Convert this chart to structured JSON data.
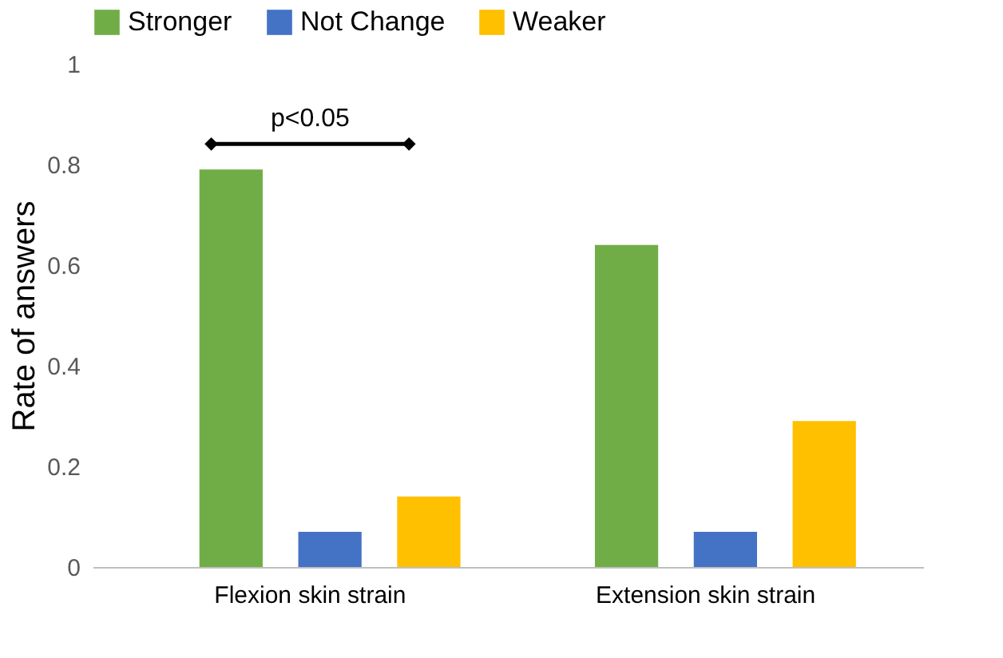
{
  "chart_data": {
    "type": "bar",
    "ylabel": "Rate of answers",
    "categories": [
      "Flexion skin strain",
      "Extension skin strain"
    ],
    "series": [
      {
        "name": "Stronger",
        "color": "#70ad47",
        "values": [
          0.79,
          0.64
        ]
      },
      {
        "name": "Not Change",
        "color": "#4472c4",
        "values": [
          0.07,
          0.07
        ]
      },
      {
        "name": "Weaker",
        "color": "#ffc000",
        "values": [
          0.14,
          0.29
        ]
      }
    ],
    "ylim": [
      0,
      1
    ],
    "yticks": [
      0,
      0.2,
      0.4,
      0.6,
      0.8,
      1
    ],
    "grid": false,
    "legend": "top",
    "annotations": [
      "p<0.05"
    ]
  }
}
